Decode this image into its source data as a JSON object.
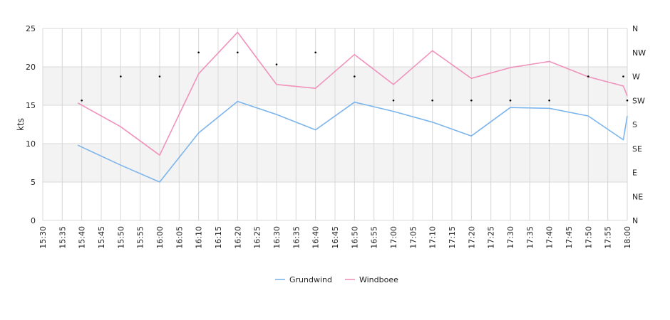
{
  "chart_data": {
    "type": "line",
    "ylabel": "kts",
    "ylim": [
      0,
      25
    ],
    "yticks": [
      0,
      5,
      10,
      15,
      20,
      25
    ],
    "xlim": [
      "15:30",
      "18:00"
    ],
    "xticks": [
      "15:30",
      "15:35",
      "15:40",
      "15:45",
      "15:50",
      "15:55",
      "16:00",
      "16:05",
      "16:10",
      "16:15",
      "16:20",
      "16:25",
      "16:30",
      "16:35",
      "16:40",
      "16:45",
      "16:50",
      "16:55",
      "17:00",
      "17:05",
      "17:10",
      "17:15",
      "17:20",
      "17:25",
      "17:30",
      "17:35",
      "17:40",
      "17:45",
      "17:50",
      "17:55",
      "18:00"
    ],
    "direction_axis": {
      "labels": [
        "N",
        "NE",
        "E",
        "SE",
        "S",
        "SW",
        "W",
        "NW",
        "N"
      ]
    },
    "grid": true,
    "shaded_bands": [
      [
        5,
        10
      ],
      [
        15,
        20
      ]
    ],
    "legend_position": "bottom-center",
    "x": [
      "15:39",
      "15:50",
      "16:00",
      "16:10",
      "16:20",
      "16:30",
      "16:40",
      "16:50",
      "17:00",
      "17:10",
      "17:20",
      "17:30",
      "17:40",
      "17:50",
      "17:59",
      "18:00"
    ],
    "series": [
      {
        "name": "Grundwind",
        "color": "#7cb5ec",
        "values": [
          9.8,
          7.2,
          5.0,
          11.4,
          15.5,
          13.8,
          11.8,
          15.4,
          14.2,
          12.8,
          11.0,
          14.7,
          14.6,
          13.6,
          10.5,
          13.6
        ]
      },
      {
        "name": "Windboee",
        "color": "#f092bb",
        "values": [
          15.3,
          12.2,
          8.5,
          19.1,
          24.5,
          17.7,
          17.2,
          21.6,
          17.7,
          22.1,
          18.5,
          19.9,
          20.7,
          18.7,
          17.5,
          16.2
        ]
      }
    ],
    "direction_points": {
      "x": [
        "15:40",
        "15:50",
        "16:00",
        "16:10",
        "16:20",
        "16:30",
        "16:40",
        "16:50",
        "17:00",
        "17:10",
        "17:20",
        "17:30",
        "17:40",
        "17:50",
        "17:59",
        "18:00"
      ],
      "values": [
        "SW",
        "W",
        "W",
        "NW",
        "NW",
        "WNW",
        "NW",
        "W",
        "SW",
        "SW",
        "SW",
        "SW",
        "SW",
        "W",
        "W",
        "SW"
      ]
    }
  }
}
